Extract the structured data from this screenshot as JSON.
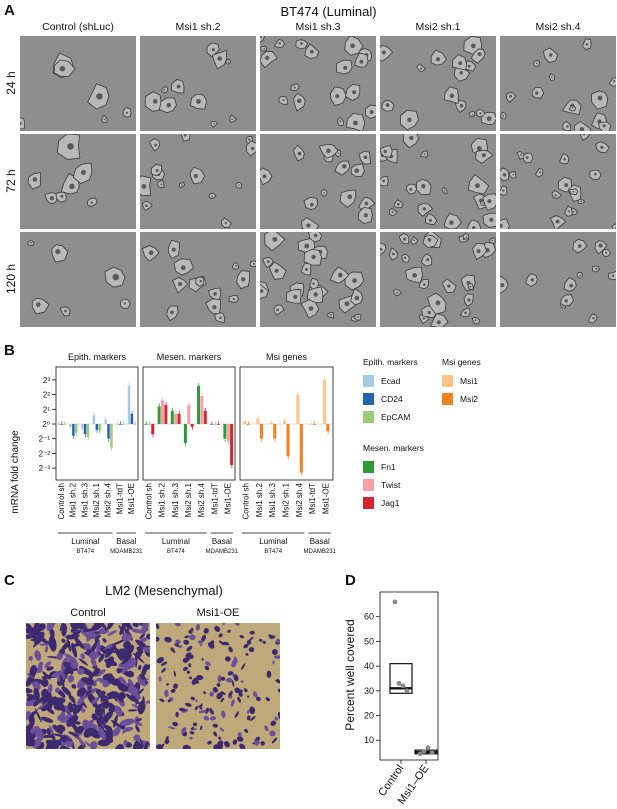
{
  "panelA": {
    "letter": "A",
    "title": "BT474 (Luminal)",
    "columns": [
      "Control (shLuc)",
      "Msi1 sh.2",
      "Msi1 sh.3",
      "Msi2 sh.1",
      "Msi2 sh.4"
    ],
    "rows": [
      "24 h",
      "72 h",
      "120 h"
    ]
  },
  "panelB": {
    "letter": "B",
    "ylabel": "mRNA fold change",
    "yticks": [
      "2³",
      "2²",
      "2¹",
      "2⁰",
      "2⁻¹",
      "2⁻²",
      "2⁻³"
    ],
    "subtitles": [
      "Epith. markers",
      "Mesen. markers",
      "Msi genes"
    ],
    "xcategories": [
      "Control sh",
      "Msi1 sh.2",
      "Msi1 sh.3",
      "Msi2 sh.1",
      "Msi2 sh.4",
      "Msi1-tdT",
      "Msi1-OE"
    ],
    "group_labels": [
      {
        "name": "Luminal",
        "sub": "BT474"
      },
      {
        "name": "Basal",
        "sub": "MDAMB231"
      }
    ],
    "legend": {
      "epith_title": "Epith. markers",
      "epith": [
        "Ecad",
        "CD24",
        "EpCAM"
      ],
      "mesen_title": "Mesen. markers",
      "mesen": [
        "Fn1",
        "Twist",
        "Jag1"
      ],
      "msi_title": "Msi genes",
      "msi": [
        "Msi1",
        "Msi2"
      ]
    },
    "colors": {
      "Ecad": "#a6cbe3",
      "CD24": "#2166ac",
      "EpCAM": "#9ccc75",
      "Fn1": "#2f9a3a",
      "Twist": "#f4a0a8",
      "Jag1": "#d7262b",
      "Msi1": "#fdc58a",
      "Msi2": "#f08220"
    }
  },
  "chart_data": [
    {
      "type": "bar",
      "title": "Epith. markers",
      "ylabel": "mRNA fold change",
      "scale": "log2",
      "categories": [
        "Control sh",
        "Msi1 sh.2",
        "Msi1 sh.3",
        "Msi2 sh.1",
        "Msi2 sh.4",
        "Msi1-tdT",
        "Msi1-OE"
      ],
      "series": [
        {
          "name": "Ecad",
          "values": [
            0,
            -0.2,
            -0.3,
            0.6,
            0.3,
            0,
            2.6
          ]
        },
        {
          "name": "CD24",
          "values": [
            0,
            -0.8,
            -0.7,
            -0.4,
            -1.0,
            0,
            0.7
          ]
        },
        {
          "name": "EpCAM",
          "values": [
            0,
            -0.6,
            -0.9,
            -0.5,
            -1.6,
            0,
            0
          ]
        }
      ],
      "ylim": [
        -3.3,
        3.3
      ]
    },
    {
      "type": "bar",
      "title": "Mesen. markers",
      "ylabel": "mRNA fold change",
      "scale": "log2",
      "categories": [
        "Control sh",
        "Msi1 sh.2",
        "Msi1 sh.3",
        "Msi2 sh.1",
        "Msi2 sh.4",
        "Msi1-tdT",
        "Msi1-OE"
      ],
      "series": [
        {
          "name": "Fn1",
          "values": [
            0,
            1.2,
            0.9,
            -1.3,
            2.6,
            0,
            -1.0
          ]
        },
        {
          "name": "Twist",
          "values": [
            0,
            1.6,
            0.7,
            1.3,
            1.9,
            0,
            -1.2
          ]
        },
        {
          "name": "Jag1",
          "values": [
            -0.7,
            1.3,
            0.7,
            -0.2,
            0.9,
            0,
            -2.8
          ]
        }
      ],
      "ylim": [
        -3.3,
        3.3
      ]
    },
    {
      "type": "bar",
      "title": "Msi genes",
      "ylabel": "mRNA fold change",
      "scale": "log2",
      "categories": [
        "Control sh",
        "Msi1 sh.2",
        "Msi1 sh.3",
        "Msi2 sh.1",
        "Msi2 sh.4",
        "Msi1-tdT",
        "Msi1-OE"
      ],
      "series": [
        {
          "name": "Msi1",
          "values": [
            0.2,
            0.4,
            0.1,
            0.2,
            2.0,
            0,
            3.0
          ]
        },
        {
          "name": "Msi2",
          "values": [
            0,
            -1.0,
            -1.0,
            -2.2,
            -3.3,
            0,
            -0.5
          ]
        }
      ],
      "ylim": [
        -3.3,
        3.3
      ]
    },
    {
      "type": "box",
      "ylabel": "Percent well covered",
      "categories": [
        "Control",
        "Msi1-OE"
      ],
      "points": [
        [
          66,
          33,
          32,
          30
        ],
        [
          4.5,
          5.5,
          7,
          5
        ]
      ],
      "boxes": [
        {
          "q1": 29,
          "median": 31,
          "q3": 41
        },
        {
          "q1": 4.5,
          "median": 5.2,
          "q3": 6
        }
      ],
      "yticks": [
        10,
        20,
        30,
        40,
        50,
        60
      ],
      "ylim": [
        2,
        70
      ]
    }
  ],
  "panelC": {
    "letter": "C",
    "title": "LM2 (Mesenchymal)",
    "labels": [
      "Control",
      "Msi1-OE"
    ]
  },
  "panelD": {
    "letter": "D",
    "ylabel": "Percent well covered",
    "xlabels": [
      "Control",
      "Msi1–OE"
    ],
    "yticks": [
      "10",
      "20",
      "30",
      "40",
      "50",
      "60"
    ]
  }
}
